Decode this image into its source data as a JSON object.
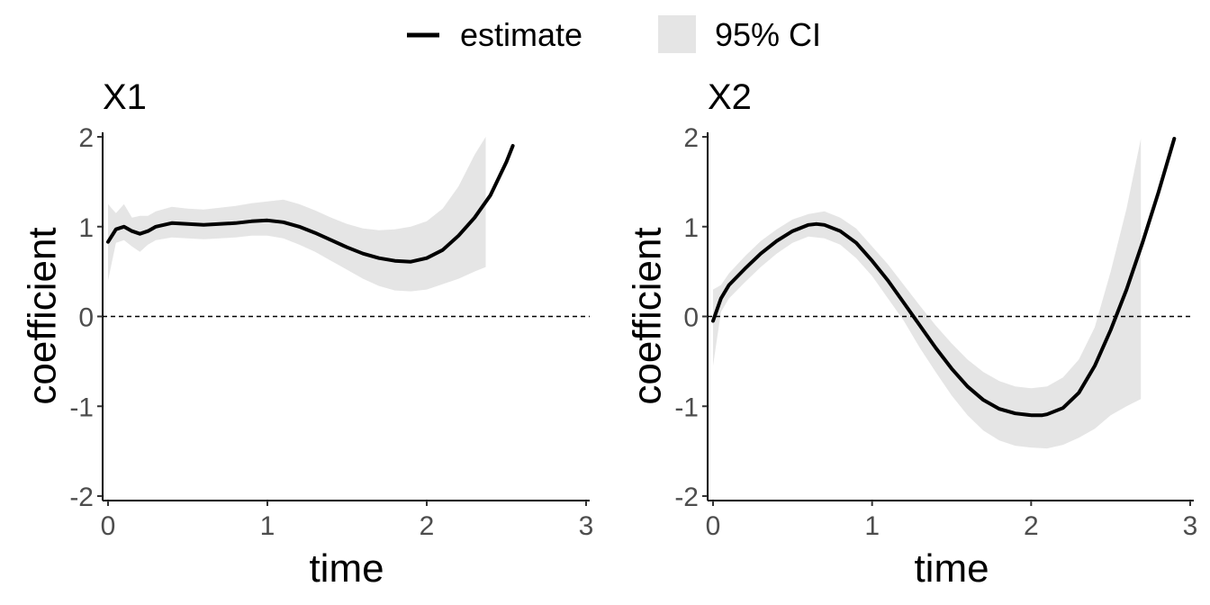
{
  "legend": {
    "estimate_label": "estimate",
    "ci_label": "95% CI",
    "estimate_color": "#000000",
    "ci_color": "#e5e5e5"
  },
  "chart_data": [
    {
      "type": "line",
      "title": "X1",
      "xlabel": "time",
      "ylabel": "coefficient",
      "xlim": [
        0,
        3
      ],
      "ylim": [
        -2,
        2
      ],
      "xticks": [
        "0",
        "1",
        "2",
        "3"
      ],
      "yticks": [
        "2",
        "1",
        "0",
        "-1",
        "-2"
      ],
      "reference_line": 0,
      "series": [
        {
          "name": "estimate",
          "x": [
            0,
            0.05,
            0.1,
            0.15,
            0.2,
            0.25,
            0.3,
            0.4,
            0.5,
            0.6,
            0.7,
            0.8,
            0.9,
            1.0,
            1.1,
            1.2,
            1.3,
            1.4,
            1.5,
            1.6,
            1.7,
            1.8,
            1.9,
            2.0,
            2.1,
            2.2,
            2.3,
            2.4,
            2.5,
            2.54
          ],
          "y": [
            0.83,
            0.97,
            1.0,
            0.95,
            0.92,
            0.95,
            1.0,
            1.04,
            1.03,
            1.02,
            1.03,
            1.04,
            1.06,
            1.07,
            1.05,
            1.0,
            0.93,
            0.85,
            0.77,
            0.7,
            0.65,
            0.62,
            0.61,
            0.65,
            0.74,
            0.9,
            1.1,
            1.35,
            1.72,
            1.9
          ]
        },
        {
          "name": "95% CI",
          "x": [
            0,
            0.05,
            0.1,
            0.15,
            0.2,
            0.25,
            0.3,
            0.4,
            0.5,
            0.6,
            0.7,
            0.8,
            0.9,
            1.0,
            1.1,
            1.2,
            1.3,
            1.4,
            1.5,
            1.6,
            1.7,
            1.8,
            1.9,
            2.0,
            2.1,
            2.2,
            2.3,
            2.37
          ],
          "lower": [
            0.4,
            0.82,
            0.85,
            0.78,
            0.72,
            0.8,
            0.85,
            0.88,
            0.87,
            0.86,
            0.87,
            0.88,
            0.9,
            0.9,
            0.87,
            0.8,
            0.72,
            0.62,
            0.52,
            0.42,
            0.34,
            0.29,
            0.28,
            0.3,
            0.36,
            0.42,
            0.5,
            0.55
          ],
          "upper": [
            1.25,
            1.15,
            1.25,
            1.1,
            1.12,
            1.12,
            1.17,
            1.22,
            1.2,
            1.19,
            1.21,
            1.23,
            1.26,
            1.28,
            1.3,
            1.25,
            1.18,
            1.1,
            1.03,
            0.98,
            0.96,
            0.97,
            1.0,
            1.06,
            1.2,
            1.45,
            1.8,
            2.0
          ]
        }
      ]
    },
    {
      "type": "line",
      "title": "X2",
      "xlabel": "time",
      "ylabel": "coefficient",
      "xlim": [
        0,
        3
      ],
      "ylim": [
        -2,
        2
      ],
      "xticks": [
        "0",
        "1",
        "2",
        "3"
      ],
      "yticks": [
        "2",
        "1",
        "0",
        "-1",
        "-2"
      ],
      "reference_line": 0,
      "series": [
        {
          "name": "estimate",
          "x": [
            0,
            0.05,
            0.1,
            0.2,
            0.3,
            0.4,
            0.5,
            0.6,
            0.65,
            0.7,
            0.8,
            0.9,
            1.0,
            1.1,
            1.2,
            1.3,
            1.4,
            1.5,
            1.6,
            1.7,
            1.8,
            1.9,
            2.0,
            2.07,
            2.1,
            2.2,
            2.3,
            2.4,
            2.5,
            2.6,
            2.7,
            2.8,
            2.9
          ],
          "y": [
            -0.05,
            0.2,
            0.35,
            0.53,
            0.7,
            0.84,
            0.95,
            1.02,
            1.03,
            1.02,
            0.95,
            0.82,
            0.62,
            0.4,
            0.15,
            -0.1,
            -0.35,
            -0.58,
            -0.78,
            -0.93,
            -1.03,
            -1.08,
            -1.1,
            -1.1,
            -1.09,
            -1.02,
            -0.85,
            -0.55,
            -0.15,
            0.3,
            0.82,
            1.38,
            1.98
          ]
        },
        {
          "name": "95% CI",
          "x": [
            0,
            0.05,
            0.1,
            0.2,
            0.3,
            0.4,
            0.5,
            0.6,
            0.7,
            0.8,
            0.9,
            1.0,
            1.1,
            1.2,
            1.3,
            1.4,
            1.5,
            1.6,
            1.7,
            1.8,
            1.9,
            2.0,
            2.1,
            2.2,
            2.3,
            2.4,
            2.5,
            2.6,
            2.69
          ],
          "lower": [
            -0.55,
            0.05,
            0.2,
            0.38,
            0.55,
            0.7,
            0.82,
            0.89,
            0.87,
            0.8,
            0.65,
            0.45,
            0.2,
            -0.05,
            -0.35,
            -0.62,
            -0.88,
            -1.1,
            -1.27,
            -1.38,
            -1.44,
            -1.46,
            -1.47,
            -1.43,
            -1.35,
            -1.25,
            -1.1,
            -1.0,
            -0.92
          ],
          "upper": [
            0.3,
            0.35,
            0.48,
            0.67,
            0.84,
            0.97,
            1.08,
            1.14,
            1.17,
            1.1,
            0.98,
            0.78,
            0.58,
            0.35,
            0.12,
            -0.1,
            -0.3,
            -0.48,
            -0.62,
            -0.72,
            -0.78,
            -0.8,
            -0.78,
            -0.68,
            -0.48,
            -0.12,
            0.5,
            1.2,
            1.98
          ]
        }
      ]
    }
  ]
}
